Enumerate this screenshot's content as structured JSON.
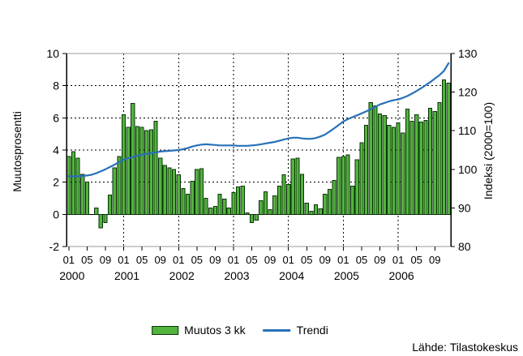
{
  "legend": {
    "bars": "Muutos 3 kk",
    "trend": "Trendi"
  },
  "source_label": "Lähde: Tilastokeskus",
  "chart_data": {
    "type": "bar",
    "title": "",
    "ylabel_left": "Muutosprosentti",
    "ylabel_right": "Indeksi (2000=100)",
    "ylim_left": [
      -2,
      10
    ],
    "ylim_right": [
      80,
      130
    ],
    "yticks_left": [
      10,
      8,
      6,
      4,
      2,
      0,
      -2
    ],
    "yticks_right": [
      130,
      120,
      110,
      100,
      90,
      80
    ],
    "grid_dashed_left": [
      8,
      6,
      4,
      2
    ],
    "grid": "dashed",
    "legend_position": "bottom",
    "years": [
      2000,
      2001,
      2002,
      2003,
      2004,
      2005,
      2006
    ],
    "month_tick_labels": [
      "01",
      "05",
      "09"
    ],
    "month_tick_offsets": [
      0,
      4,
      8
    ],
    "categories": [
      "2000-01",
      "2000-02",
      "2000-03",
      "2000-04",
      "2000-05",
      "2000-06",
      "2000-07",
      "2000-08",
      "2000-09",
      "2000-10",
      "2000-11",
      "2000-12",
      "2001-01",
      "2001-02",
      "2001-03",
      "2001-04",
      "2001-05",
      "2001-06",
      "2001-07",
      "2001-08",
      "2001-09",
      "2001-10",
      "2001-11",
      "2001-12",
      "2002-01",
      "2002-02",
      "2002-03",
      "2002-04",
      "2002-05",
      "2002-06",
      "2002-07",
      "2002-08",
      "2002-09",
      "2002-10",
      "2002-11",
      "2002-12",
      "2003-01",
      "2003-02",
      "2003-03",
      "2003-04",
      "2003-05",
      "2003-06",
      "2003-07",
      "2003-08",
      "2003-09",
      "2003-10",
      "2003-11",
      "2003-12",
      "2004-01",
      "2004-02",
      "2004-03",
      "2004-04",
      "2004-05",
      "2004-06",
      "2004-07",
      "2004-08",
      "2004-09",
      "2004-10",
      "2004-11",
      "2004-12",
      "2005-01",
      "2005-02",
      "2005-03",
      "2005-04",
      "2005-05",
      "2005-06",
      "2005-07",
      "2005-08",
      "2005-09",
      "2005-10",
      "2005-11",
      "2005-12",
      "2006-01",
      "2006-02",
      "2006-03",
      "2006-04",
      "2006-05",
      "2006-06",
      "2006-07",
      "2006-08",
      "2006-09",
      "2006-10",
      "2006-11",
      "2006-12"
    ],
    "series": [
      {
        "name": "Muutos 3 kk",
        "type": "bar",
        "axis": "left",
        "values": [
          3.6,
          3.9,
          3.5,
          2.5,
          2.0,
          0.0,
          0.4,
          -0.85,
          -0.5,
          1.2,
          2.9,
          3.6,
          6.2,
          5.4,
          6.9,
          5.45,
          5.4,
          5.2,
          5.25,
          5.8,
          3.5,
          3.05,
          2.9,
          2.8,
          2.45,
          1.6,
          1.25,
          2.05,
          2.8,
          2.85,
          1.0,
          0.4,
          0.5,
          1.25,
          0.95,
          0.4,
          1.35,
          1.7,
          1.75,
          0.1,
          -0.5,
          -0.35,
          0.85,
          1.4,
          0.3,
          1.15,
          1.75,
          2.45,
          1.85,
          3.45,
          3.5,
          2.5,
          0.7,
          0.2,
          0.6,
          0.35,
          1.25,
          1.55,
          2.1,
          3.55,
          3.6,
          3.7,
          1.75,
          3.4,
          4.45,
          5.55,
          6.95,
          6.75,
          6.25,
          6.15,
          5.55,
          5.4,
          5.7,
          5.05,
          6.55,
          5.8,
          6.2,
          5.75,
          5.85,
          6.6,
          6.4,
          6.95,
          8.35,
          8.15
        ]
      },
      {
        "name": "Trendi",
        "type": "line",
        "axis": "right",
        "values": [
          98.2,
          98.2,
          98.2,
          98.3,
          98.4,
          98.6,
          99.0,
          99.5,
          100.0,
          100.6,
          101.2,
          101.9,
          102.5,
          102.9,
          103.2,
          103.5,
          103.8,
          104.0,
          104.2,
          104.4,
          104.6,
          104.7,
          104.8,
          104.9,
          105.0,
          105.2,
          105.5,
          105.9,
          106.2,
          106.4,
          106.5,
          106.4,
          106.3,
          106.2,
          106.2,
          106.2,
          106.2,
          106.1,
          106.1,
          106.1,
          106.2,
          106.3,
          106.5,
          106.7,
          106.9,
          107.1,
          107.4,
          107.7,
          108.0,
          108.2,
          108.2,
          108.0,
          107.9,
          107.9,
          108.1,
          108.5,
          109.0,
          109.8,
          110.6,
          111.5,
          112.4,
          113.0,
          113.5,
          114.0,
          114.5,
          115.0,
          115.6,
          116.2,
          116.8,
          117.2,
          117.6,
          117.9,
          118.1,
          118.5,
          119.0,
          119.6,
          120.3,
          121.0,
          121.8,
          122.6,
          123.5,
          124.4,
          125.5,
          127.5
        ]
      }
    ],
    "colors": {
      "bar_fill": "#52b43c",
      "bar_border": "#0a330a",
      "trend": "#2870b8",
      "grid": "#000000",
      "frame": "#999999",
      "axis": "#000000",
      "text": "#000000"
    }
  }
}
